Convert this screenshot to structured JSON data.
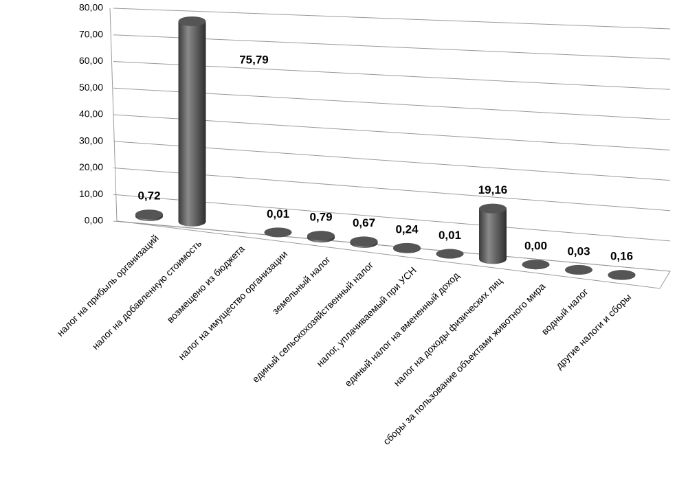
{
  "chart_data": {
    "type": "bar3d",
    "categories": [
      "налог на прибыль организаций",
      "налог на добавленную стоимость",
      "возмещено из бюджета",
      "налог на имущество организации",
      "земельный налог",
      "единый сельскохозяйственный налог",
      "налог, уплачиваемый при УСН",
      "единый налог на вмененный доход",
      "налог на доходы физических лиц",
      "сборы за пользование объектами животного мира",
      "водный налог",
      "другие налоги и сборы"
    ],
    "values": [
      0.72,
      75.79,
      null,
      0.01,
      0.79,
      0.67,
      0.24,
      0.01,
      19.16,
      0.0,
      0.03,
      0.16
    ],
    "value_labels": [
      "0,72",
      "75,79",
      null,
      "0,01",
      "0,79",
      "0,67",
      "0,24",
      "0,01",
      "19,16",
      "0,00",
      "0,03",
      "0,16"
    ],
    "color": "#6e6e6e",
    "ylim": [
      0,
      80
    ],
    "yticks": [
      {
        "value": 0,
        "label": "0,00"
      },
      {
        "value": 10,
        "label": "10,00"
      },
      {
        "value": 20,
        "label": "20,00"
      },
      {
        "value": 30,
        "label": "30,00"
      },
      {
        "value": 40,
        "label": "40,00"
      },
      {
        "value": 50,
        "label": "50,00"
      },
      {
        "value": 60,
        "label": "60,00"
      },
      {
        "value": 70,
        "label": "70,00"
      },
      {
        "value": 80,
        "label": "80,00"
      }
    ],
    "grid": true
  }
}
